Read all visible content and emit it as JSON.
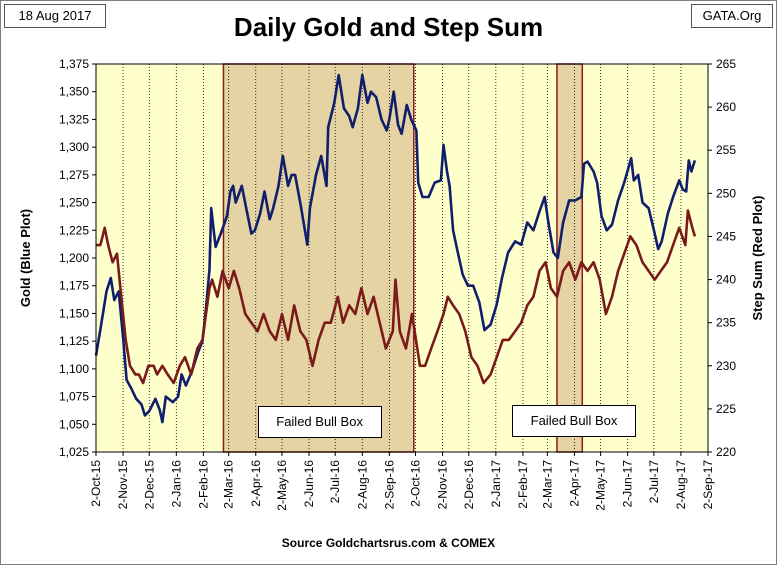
{
  "header": {
    "date": "18 Aug 2017",
    "source": "GATA.Org",
    "title": "Daily Gold and Step Sum"
  },
  "footer": "Source Goldchartsrus.com & COMEX",
  "colors": {
    "plot_bg": "#ffffcc",
    "box_fill": "#e6d3a3",
    "box_border": "#8b1a1a",
    "gold_line": "#0f1f6b",
    "step_line": "#7a1a1a"
  },
  "chart_data": {
    "type": "line",
    "title": "Daily Gold and Step Sum",
    "ylabel_left": "Gold   (Blue Plot)",
    "ylabel_right": "Step Sum   (Red Plot)",
    "xlabel": "",
    "y_left": {
      "min": 1025,
      "max": 1375,
      "step": 25
    },
    "y_right": {
      "min": 220,
      "max": 265,
      "step": 5
    },
    "x_start": "2015-10-02",
    "x_end": "2017-09-02",
    "grid": "vertical",
    "xticks": [
      "2-Oct-15",
      "2-Nov-15",
      "2-Dec-15",
      "2-Jan-16",
      "2-Feb-16",
      "2-Mar-16",
      "2-Apr-16",
      "2-May-16",
      "2-Jun-16",
      "2-Jul-16",
      "2-Aug-16",
      "2-Sep-16",
      "2-Oct-16",
      "2-Nov-16",
      "2-Dec-16",
      "2-Jan-17",
      "2-Feb-17",
      "2-Mar-17",
      "2-Apr-17",
      "2-May-17",
      "2-Jun-17",
      "2-Jul-17",
      "2-Aug-17",
      "2-Sep-17"
    ],
    "boxes": [
      {
        "label": "Failed Bull Box",
        "start": "2016-02-25",
        "end": "2016-09-30"
      },
      {
        "label": "Failed Bull Box",
        "start": "2017-03-13",
        "end": "2017-04-11"
      }
    ],
    "series": [
      {
        "name": "Gold",
        "axis": "left",
        "points": [
          [
            "2015-10-02",
            1112
          ],
          [
            "2015-10-08",
            1140
          ],
          [
            "2015-10-14",
            1170
          ],
          [
            "2015-10-19",
            1182
          ],
          [
            "2015-10-23",
            1162
          ],
          [
            "2015-10-28",
            1170
          ],
          [
            "2015-11-02",
            1128
          ],
          [
            "2015-11-06",
            1090
          ],
          [
            "2015-11-11",
            1083
          ],
          [
            "2015-11-17",
            1073
          ],
          [
            "2015-11-23",
            1068
          ],
          [
            "2015-11-27",
            1058
          ],
          [
            "2015-12-02",
            1062
          ],
          [
            "2015-12-09",
            1073
          ],
          [
            "2015-12-14",
            1063
          ],
          [
            "2015-12-17",
            1052
          ],
          [
            "2015-12-21",
            1075
          ],
          [
            "2015-12-29",
            1070
          ],
          [
            "2016-01-04",
            1075
          ],
          [
            "2016-01-08",
            1095
          ],
          [
            "2016-01-13",
            1085
          ],
          [
            "2016-01-20",
            1098
          ],
          [
            "2016-01-27",
            1115
          ],
          [
            "2016-02-01",
            1125
          ],
          [
            "2016-02-05",
            1155
          ],
          [
            "2016-02-09",
            1190
          ],
          [
            "2016-02-11",
            1245
          ],
          [
            "2016-02-16",
            1210
          ],
          [
            "2016-02-22",
            1222
          ],
          [
            "2016-02-29",
            1238
          ],
          [
            "2016-03-04",
            1260
          ],
          [
            "2016-03-07",
            1265
          ],
          [
            "2016-03-10",
            1250
          ],
          [
            "2016-03-17",
            1265
          ],
          [
            "2016-03-22",
            1245
          ],
          [
            "2016-03-28",
            1222
          ],
          [
            "2016-04-01",
            1225
          ],
          [
            "2016-04-07",
            1240
          ],
          [
            "2016-04-12",
            1260
          ],
          [
            "2016-04-18",
            1235
          ],
          [
            "2016-04-22",
            1245
          ],
          [
            "2016-04-28",
            1265
          ],
          [
            "2016-05-03",
            1292
          ],
          [
            "2016-05-09",
            1265
          ],
          [
            "2016-05-13",
            1275
          ],
          [
            "2016-05-17",
            1275
          ],
          [
            "2016-05-24",
            1245
          ],
          [
            "2016-05-31",
            1212
          ],
          [
            "2016-06-03",
            1245
          ],
          [
            "2016-06-10",
            1275
          ],
          [
            "2016-06-16",
            1292
          ],
          [
            "2016-06-22",
            1265
          ],
          [
            "2016-06-24",
            1318
          ],
          [
            "2016-07-01",
            1340
          ],
          [
            "2016-07-06",
            1365
          ],
          [
            "2016-07-12",
            1335
          ],
          [
            "2016-07-18",
            1328
          ],
          [
            "2016-07-22",
            1318
          ],
          [
            "2016-07-28",
            1335
          ],
          [
            "2016-08-02",
            1365
          ],
          [
            "2016-08-08",
            1340
          ],
          [
            "2016-08-12",
            1350
          ],
          [
            "2016-08-18",
            1345
          ],
          [
            "2016-08-24",
            1325
          ],
          [
            "2016-08-30",
            1315
          ],
          [
            "2016-09-02",
            1325
          ],
          [
            "2016-09-07",
            1350
          ],
          [
            "2016-09-12",
            1320
          ],
          [
            "2016-09-16",
            1312
          ],
          [
            "2016-09-22",
            1338
          ],
          [
            "2016-09-27",
            1325
          ],
          [
            "2016-10-03",
            1315
          ],
          [
            "2016-10-05",
            1268
          ],
          [
            "2016-10-10",
            1255
          ],
          [
            "2016-10-17",
            1255
          ],
          [
            "2016-10-24",
            1268
          ],
          [
            "2016-10-31",
            1270
          ],
          [
            "2016-11-03",
            1302
          ],
          [
            "2016-11-07",
            1278
          ],
          [
            "2016-11-10",
            1265
          ],
          [
            "2016-11-14",
            1225
          ],
          [
            "2016-11-18",
            1210
          ],
          [
            "2016-11-25",
            1185
          ],
          [
            "2016-12-01",
            1175
          ],
          [
            "2016-12-07",
            1175
          ],
          [
            "2016-12-14",
            1160
          ],
          [
            "2016-12-20",
            1135
          ],
          [
            "2016-12-27",
            1140
          ],
          [
            "2017-01-03",
            1158
          ],
          [
            "2017-01-09",
            1182
          ],
          [
            "2017-01-16",
            1205
          ],
          [
            "2017-01-24",
            1215
          ],
          [
            "2017-01-31",
            1212
          ],
          [
            "2017-02-07",
            1232
          ],
          [
            "2017-02-14",
            1225
          ],
          [
            "2017-02-21",
            1242
          ],
          [
            "2017-02-27",
            1255
          ],
          [
            "2017-03-03",
            1233
          ],
          [
            "2017-03-09",
            1205
          ],
          [
            "2017-03-14",
            1200
          ],
          [
            "2017-03-20",
            1232
          ],
          [
            "2017-03-27",
            1252
          ],
          [
            "2017-04-03",
            1252
          ],
          [
            "2017-04-10",
            1255
          ],
          [
            "2017-04-13",
            1285
          ],
          [
            "2017-04-17",
            1287
          ],
          [
            "2017-04-24",
            1278
          ],
          [
            "2017-04-28",
            1268
          ],
          [
            "2017-05-03",
            1238
          ],
          [
            "2017-05-09",
            1225
          ],
          [
            "2017-05-15",
            1230
          ],
          [
            "2017-05-22",
            1252
          ],
          [
            "2017-05-29",
            1268
          ],
          [
            "2017-06-06",
            1290
          ],
          [
            "2017-06-09",
            1270
          ],
          [
            "2017-06-14",
            1275
          ],
          [
            "2017-06-19",
            1250
          ],
          [
            "2017-06-26",
            1245
          ],
          [
            "2017-07-03",
            1222
          ],
          [
            "2017-07-07",
            1208
          ],
          [
            "2017-07-11",
            1215
          ],
          [
            "2017-07-18",
            1240
          ],
          [
            "2017-07-24",
            1255
          ],
          [
            "2017-07-31",
            1270
          ],
          [
            "2017-08-04",
            1262
          ],
          [
            "2017-08-08",
            1260
          ],
          [
            "2017-08-11",
            1288
          ],
          [
            "2017-08-14",
            1278
          ],
          [
            "2017-08-18",
            1288
          ]
        ]
      },
      {
        "name": "Step Sum",
        "axis": "right",
        "points": [
          [
            "2015-10-02",
            244
          ],
          [
            "2015-10-07",
            244
          ],
          [
            "2015-10-12",
            246
          ],
          [
            "2015-10-16",
            244
          ],
          [
            "2015-10-21",
            242
          ],
          [
            "2015-10-26",
            243
          ],
          [
            "2015-10-30",
            239
          ],
          [
            "2015-11-05",
            233
          ],
          [
            "2015-11-10",
            230
          ],
          [
            "2015-11-16",
            229
          ],
          [
            "2015-11-20",
            229
          ],
          [
            "2015-11-25",
            228
          ],
          [
            "2015-12-01",
            230
          ],
          [
            "2015-12-07",
            230
          ],
          [
            "2015-12-11",
            229
          ],
          [
            "2015-12-17",
            230
          ],
          [
            "2015-12-23",
            229
          ],
          [
            "2015-12-30",
            228
          ],
          [
            "2016-01-06",
            230
          ],
          [
            "2016-01-12",
            231
          ],
          [
            "2016-01-19",
            229
          ],
          [
            "2016-01-26",
            232
          ],
          [
            "2016-02-01",
            233
          ],
          [
            "2016-02-05",
            236
          ],
          [
            "2016-02-09",
            239
          ],
          [
            "2016-02-12",
            240
          ],
          [
            "2016-02-18",
            238
          ],
          [
            "2016-02-24",
            241
          ],
          [
            "2016-03-02",
            239
          ],
          [
            "2016-03-08",
            241
          ],
          [
            "2016-03-14",
            239
          ],
          [
            "2016-03-21",
            236
          ],
          [
            "2016-03-28",
            235
          ],
          [
            "2016-04-04",
            234
          ],
          [
            "2016-04-11",
            236
          ],
          [
            "2016-04-18",
            234
          ],
          [
            "2016-04-25",
            233
          ],
          [
            "2016-05-02",
            236
          ],
          [
            "2016-05-09",
            233
          ],
          [
            "2016-05-16",
            237
          ],
          [
            "2016-05-23",
            234
          ],
          [
            "2016-05-30",
            233
          ],
          [
            "2016-06-06",
            230
          ],
          [
            "2016-06-13",
            233
          ],
          [
            "2016-06-20",
            235
          ],
          [
            "2016-06-27",
            235
          ],
          [
            "2016-07-05",
            238
          ],
          [
            "2016-07-11",
            235
          ],
          [
            "2016-07-18",
            237
          ],
          [
            "2016-07-25",
            236
          ],
          [
            "2016-08-01",
            239
          ],
          [
            "2016-08-08",
            236
          ],
          [
            "2016-08-15",
            238
          ],
          [
            "2016-08-22",
            235
          ],
          [
            "2016-08-29",
            232
          ],
          [
            "2016-09-06",
            234
          ],
          [
            "2016-09-09",
            240
          ],
          [
            "2016-09-14",
            234
          ],
          [
            "2016-09-21",
            232
          ],
          [
            "2016-09-28",
            236
          ],
          [
            "2016-10-04",
            232
          ],
          [
            "2016-10-07",
            230
          ],
          [
            "2016-10-13",
            230
          ],
          [
            "2016-10-20",
            232
          ],
          [
            "2016-10-27",
            234
          ],
          [
            "2016-11-03",
            236
          ],
          [
            "2016-11-08",
            238
          ],
          [
            "2016-11-14",
            237
          ],
          [
            "2016-11-21",
            236
          ],
          [
            "2016-11-28",
            234
          ],
          [
            "2016-12-05",
            231
          ],
          [
            "2016-12-12",
            230
          ],
          [
            "2016-12-19",
            228
          ],
          [
            "2016-12-27",
            229
          ],
          [
            "2017-01-03",
            231
          ],
          [
            "2017-01-10",
            233
          ],
          [
            "2017-01-17",
            233
          ],
          [
            "2017-01-24",
            234
          ],
          [
            "2017-01-31",
            235
          ],
          [
            "2017-02-07",
            237
          ],
          [
            "2017-02-14",
            238
          ],
          [
            "2017-02-21",
            241
          ],
          [
            "2017-02-28",
            242
          ],
          [
            "2017-03-06",
            239
          ],
          [
            "2017-03-13",
            238
          ],
          [
            "2017-03-20",
            241
          ],
          [
            "2017-03-27",
            242
          ],
          [
            "2017-04-03",
            240
          ],
          [
            "2017-04-10",
            242
          ],
          [
            "2017-04-17",
            241
          ],
          [
            "2017-04-24",
            242
          ],
          [
            "2017-05-01",
            240
          ],
          [
            "2017-05-08",
            236
          ],
          [
            "2017-05-15",
            238
          ],
          [
            "2017-05-22",
            241
          ],
          [
            "2017-05-29",
            243
          ],
          [
            "2017-06-05",
            245
          ],
          [
            "2017-06-12",
            244
          ],
          [
            "2017-06-19",
            242
          ],
          [
            "2017-06-26",
            241
          ],
          [
            "2017-07-03",
            240
          ],
          [
            "2017-07-10",
            241
          ],
          [
            "2017-07-17",
            242
          ],
          [
            "2017-07-24",
            244
          ],
          [
            "2017-07-31",
            246
          ],
          [
            "2017-08-07",
            244
          ],
          [
            "2017-08-10",
            248
          ],
          [
            "2017-08-15",
            246
          ],
          [
            "2017-08-18",
            245
          ]
        ]
      }
    ]
  }
}
